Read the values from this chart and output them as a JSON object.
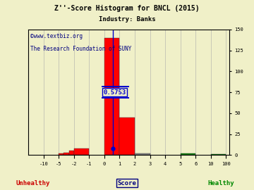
{
  "title": "Z''-Score Histogram for BNCL (2015)",
  "subtitle": "Industry: Banks",
  "watermark1": "©www.textbiz.org",
  "watermark2": "The Research Foundation of SUNY",
  "xlabel_center": "Score",
  "xlabel_left": "Unhealthy",
  "xlabel_right": "Healthy",
  "marker_value": 0.5753,
  "marker_label": "0.5753",
  "ymax": 150,
  "yticks_right": [
    0,
    25,
    50,
    75,
    100,
    125,
    150
  ],
  "background_color": "#f0f0c8",
  "grid_color": "#aaaaaa",
  "title_color": "#000000",
  "subtitle_color": "#000000",
  "watermark_color": "#000080",
  "marker_color": "#0000cc",
  "unhealthy_color": "#cc0000",
  "healthy_color": "#008800",
  "score_color": "#000080",
  "data_breaks": [
    -13,
    -10,
    -5,
    -2,
    -1,
    0,
    1,
    2,
    3,
    4,
    5,
    6,
    10,
    100,
    101
  ],
  "vis_breaks": [
    0,
    1,
    2,
    3,
    4,
    5,
    6,
    7,
    8,
    9,
    10,
    11,
    12,
    13,
    13.2
  ],
  "xtick_data": [
    -10,
    -5,
    -2,
    -1,
    0,
    1,
    2,
    3,
    4,
    5,
    6,
    10,
    100
  ],
  "bars": [
    [
      -5,
      -4,
      2,
      "red"
    ],
    [
      -4,
      -3,
      3,
      "red"
    ],
    [
      -3,
      -2,
      5,
      "red"
    ],
    [
      -2,
      -1,
      8,
      "red"
    ],
    [
      0,
      1,
      140,
      "red"
    ],
    [
      1,
      2,
      45,
      "red"
    ],
    [
      2,
      3,
      2,
      "#888888"
    ],
    [
      5,
      6,
      2,
      "#008800"
    ],
    [
      10,
      100,
      1,
      "#008800"
    ]
  ]
}
